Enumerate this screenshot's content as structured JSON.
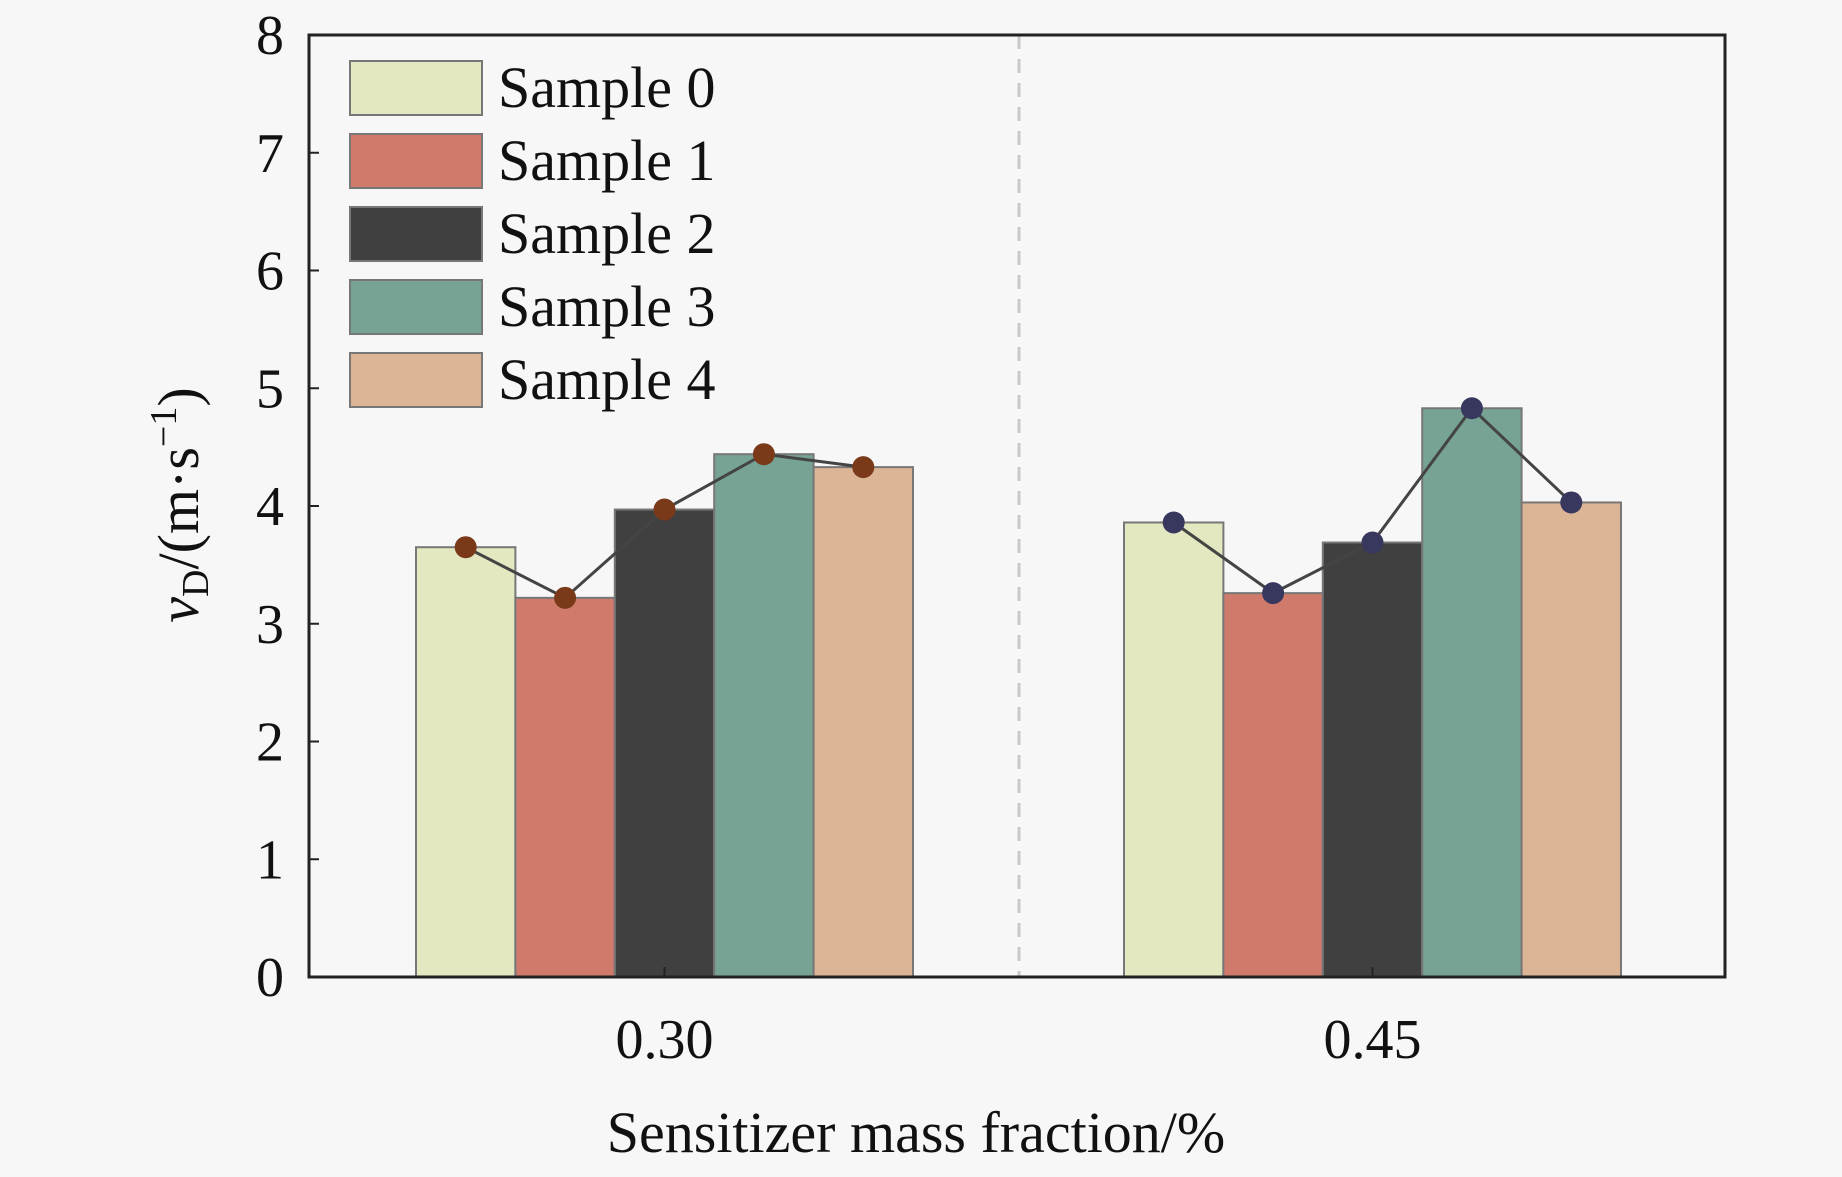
{
  "chart_data": {
    "type": "bar",
    "xlabel": "Sensitizer mass fraction/%",
    "ylabel": {
      "var": "v",
      "sub": "D",
      "mid": "/(m·s",
      "sup": "−1",
      "end": ")"
    },
    "ylim": [
      0,
      8
    ],
    "yticks": [
      "0",
      "1",
      "2",
      "3",
      "4",
      "5",
      "6",
      "7",
      "8"
    ],
    "categories": [
      "0.30",
      "0.45"
    ],
    "legend_position": "top-left",
    "grid": false,
    "series": [
      {
        "name": "Sample 0",
        "color": "#e3e8c0",
        "values": [
          3.65,
          3.86
        ]
      },
      {
        "name": "Sample 1",
        "color": "#d07a6c",
        "values": [
          3.22,
          3.26
        ]
      },
      {
        "name": "Sample 2",
        "color": "#404040",
        "values": [
          3.97,
          3.69
        ]
      },
      {
        "name": "Sample 3",
        "color": "#76a393",
        "values": [
          4.44,
          4.83
        ]
      },
      {
        "name": "Sample 4",
        "color": "#dcb496",
        "values": [
          4.33,
          4.03
        ]
      }
    ],
    "line_marker_colors": [
      "#7a3a1a",
      "#38385e"
    ]
  }
}
